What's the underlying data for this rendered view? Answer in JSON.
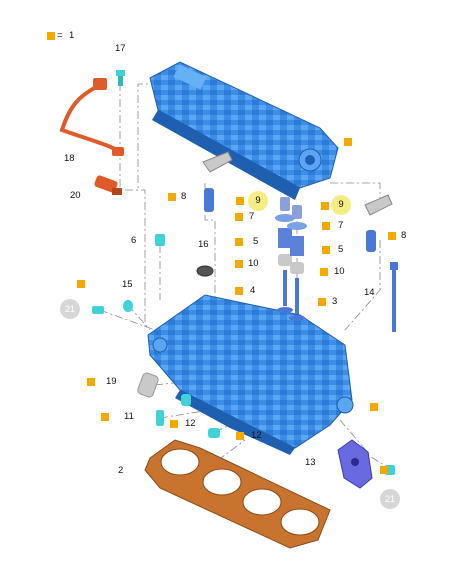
{
  "legend": {
    "marker": "■",
    "equals": "=",
    "value": "1"
  },
  "callouts": {
    "c2": "2",
    "c3": "3",
    "c4": "4",
    "c5a": "5",
    "c5b": "5",
    "c6": "6",
    "c7a": "7",
    "c7b": "7",
    "c8a": "8",
    "c8b": "8",
    "c9a": "9",
    "c9b": "9",
    "c10a": "10",
    "c10b": "10",
    "c11": "11",
    "c12a": "12",
    "c12b": "12",
    "c13": "13",
    "c14": "14",
    "c15": "15",
    "c16": "16",
    "c17": "17",
    "c18": "18",
    "c19": "19",
    "c20": "20",
    "c21a": "21",
    "c21b": "21"
  },
  "colors": {
    "head_blue": "#3a8ee8",
    "head_blue_dark": "#1f5fb0",
    "part_red": "#e05a2a",
    "gasket": "#c8742e",
    "marker_orange": "#f5a800",
    "highlight_yellow": "#f6ec84",
    "ref_grey": "#d7d7d7",
    "part_grey": "#c9c9c9",
    "valve_blue": "#4a78d8",
    "cyan_part": "#3fd2d8"
  }
}
